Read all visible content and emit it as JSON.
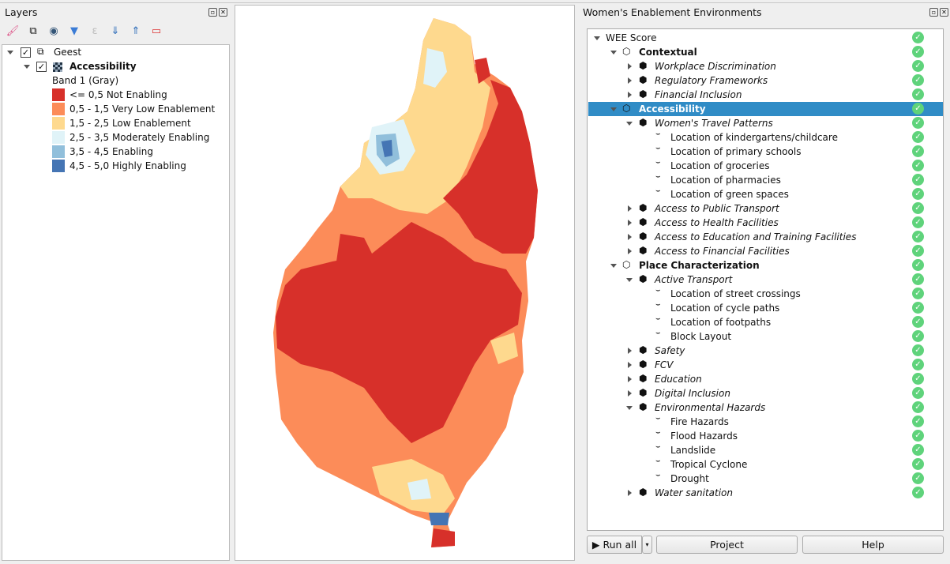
{
  "layers_panel": {
    "title": "Layers",
    "toolbar": [
      "paint-brush-icon",
      "add-group-icon",
      "eye-icon",
      "filter-icon",
      "expression-filter-icon",
      "expand-all-icon",
      "collapse-all-icon",
      "remove-layer-icon"
    ],
    "group": {
      "name": "Geest",
      "checked": true
    },
    "layer": {
      "name": "Accessibility",
      "checked": true,
      "band": "Band 1 (Gray)"
    },
    "legend": [
      {
        "label": "<= 0,5 Not Enabling",
        "color": "#d7302a"
      },
      {
        "label": "0,5 - 1,5 Very Low Enablement",
        "color": "#fc8c59"
      },
      {
        "label": "1,5 - 2,5 Low Enablement",
        "color": "#fed98e"
      },
      {
        "label": "2,5 - 3,5 Moderately Enabling",
        "color": "#e0f3f8"
      },
      {
        "label": "3,5 - 4,5 Enabling",
        "color": "#91bfdb"
      },
      {
        "label": "4,5 - 5,0 Highly Enabling",
        "color": "#4575b4"
      }
    ]
  },
  "wee_panel": {
    "title": "Women's Enablement Environments",
    "tree": [
      {
        "label": "WEE Score",
        "level": 0,
        "state": "expanded",
        "style": "normal"
      },
      {
        "label": "Contextual",
        "level": 1,
        "state": "expanded",
        "style": "bold"
      },
      {
        "label": "Workplace Discrimination",
        "level": 2,
        "state": "collapsed",
        "style": "italic"
      },
      {
        "label": "Regulatory Frameworks",
        "level": 2,
        "state": "collapsed",
        "style": "italic"
      },
      {
        "label": "Financial Inclusion",
        "level": 2,
        "state": "collapsed",
        "style": "italic"
      },
      {
        "label": "Accessibility",
        "level": 1,
        "state": "expanded",
        "style": "bold",
        "selected": true
      },
      {
        "label": "Women's Travel Patterns",
        "level": 2,
        "state": "expanded",
        "style": "italic"
      },
      {
        "label": "Location of kindergartens/childcare",
        "level": 3,
        "state": "leaf",
        "style": "normal"
      },
      {
        "label": "Location of primary schools",
        "level": 3,
        "state": "leaf",
        "style": "normal"
      },
      {
        "label": "Location of groceries",
        "level": 3,
        "state": "leaf",
        "style": "normal"
      },
      {
        "label": "Location of pharmacies",
        "level": 3,
        "state": "leaf",
        "style": "normal"
      },
      {
        "label": "Location of green spaces",
        "level": 3,
        "state": "leaf",
        "style": "normal"
      },
      {
        "label": "Access to Public Transport",
        "level": 2,
        "state": "collapsed",
        "style": "italic"
      },
      {
        "label": "Access to Health Facilities",
        "level": 2,
        "state": "collapsed",
        "style": "italic"
      },
      {
        "label": "Access to Education and Training Facilities",
        "level": 2,
        "state": "collapsed",
        "style": "italic"
      },
      {
        "label": "Access to Financial Facilities",
        "level": 2,
        "state": "collapsed",
        "style": "italic"
      },
      {
        "label": "Place Characterization",
        "level": 1,
        "state": "expanded",
        "style": "bold"
      },
      {
        "label": "Active Transport",
        "level": 2,
        "state": "expanded",
        "style": "italic"
      },
      {
        "label": "Location of street crossings",
        "level": 3,
        "state": "leaf",
        "style": "normal"
      },
      {
        "label": "Location of cycle paths",
        "level": 3,
        "state": "leaf",
        "style": "normal"
      },
      {
        "label": "Location of footpaths",
        "level": 3,
        "state": "leaf",
        "style": "normal"
      },
      {
        "label": "Block Layout",
        "level": 3,
        "state": "leaf",
        "style": "normal"
      },
      {
        "label": "Safety",
        "level": 2,
        "state": "collapsed",
        "style": "italic"
      },
      {
        "label": "FCV",
        "level": 2,
        "state": "collapsed",
        "style": "italic"
      },
      {
        "label": "Education",
        "level": 2,
        "state": "collapsed",
        "style": "italic"
      },
      {
        "label": "Digital Inclusion",
        "level": 2,
        "state": "collapsed",
        "style": "italic"
      },
      {
        "label": "Environmental Hazards",
        "level": 2,
        "state": "expanded",
        "style": "italic"
      },
      {
        "label": "Fire Hazards",
        "level": 3,
        "state": "leaf",
        "style": "normal"
      },
      {
        "label": "Flood Hazards",
        "level": 3,
        "state": "leaf",
        "style": "normal"
      },
      {
        "label": "Landslide",
        "level": 3,
        "state": "leaf",
        "style": "normal"
      },
      {
        "label": "Tropical Cyclone",
        "level": 3,
        "state": "leaf",
        "style": "normal"
      },
      {
        "label": "Drought",
        "level": 3,
        "state": "leaf",
        "style": "normal"
      },
      {
        "label": "Water sanitation",
        "level": 2,
        "state": "collapsed",
        "style": "italic"
      }
    ],
    "status_icon": "check-circle-icon",
    "buttons": {
      "run_all": "▶ Run all",
      "project": "Project",
      "help": "Help"
    }
  },
  "colors": {
    "selection": "#308cc6",
    "status_ok": "#5fd37b"
  }
}
